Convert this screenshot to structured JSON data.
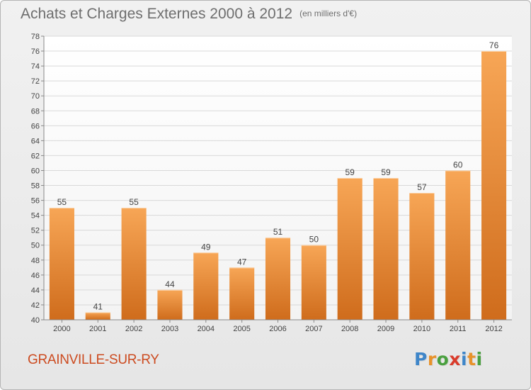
{
  "header": {
    "title": "Achats et Charges Externes 2000 à 2012",
    "unit": "(en milliers d'€)"
  },
  "footer": {
    "commune": "GRAINVILLE-SUR-RY",
    "logo": "Proxiti"
  },
  "colors": {
    "bar_light": "#f7a656",
    "bar_dark": "#cf6c1c",
    "grid": "#d9d9d9",
    "axis_text": "#444444",
    "title": "#6e6e6e",
    "commune": "#cc4b20"
  },
  "chart_data": {
    "type": "bar",
    "title": "Achats et Charges Externes 2000 à 2012",
    "subtitle": "(en milliers d'€)",
    "xlabel": "",
    "ylabel": "",
    "categories": [
      "2000",
      "2001",
      "2002",
      "2003",
      "2004",
      "2005",
      "2006",
      "2007",
      "2008",
      "2009",
      "2010",
      "2011",
      "2012"
    ],
    "values": [
      55,
      41,
      55,
      44,
      49,
      47,
      51,
      50,
      59,
      59,
      57,
      60,
      76
    ],
    "ylim": [
      40,
      78
    ],
    "ytick_step": 2,
    "grid": true,
    "legend": "none",
    "data_labels": true
  }
}
